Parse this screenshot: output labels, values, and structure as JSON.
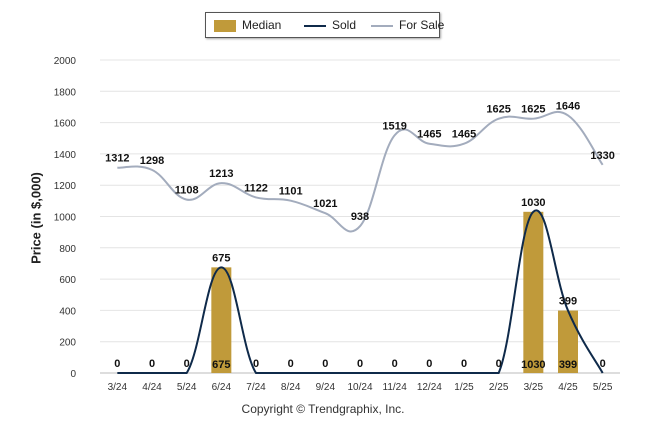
{
  "legend": {
    "median_label": "Median",
    "sold_label": "Sold",
    "forsale_label": "For Sale"
  },
  "copyright": "Copyright © Trendgraphix, Inc.",
  "colors": {
    "median": "#c09a3a",
    "sold": "#0f2a4a",
    "forsale": "#a3acbd"
  },
  "chart_data": {
    "type": "bar",
    "categories": [
      "3/24",
      "4/24",
      "5/24",
      "6/24",
      "7/24",
      "8/24",
      "9/24",
      "10/24",
      "11/24",
      "12/24",
      "1/25",
      "2/25",
      "3/25",
      "4/25",
      "5/25"
    ],
    "ylabel": "Price (in $,000)",
    "xlabel": "",
    "ylim": [
      0,
      2000
    ],
    "yticks": [
      0,
      200,
      400,
      600,
      800,
      1000,
      1200,
      1400,
      1600,
      1800,
      2000
    ],
    "grid": true,
    "legend_position": "top-center",
    "series": [
      {
        "name": "Median",
        "type": "bar",
        "values": [
          0,
          0,
          0,
          675,
          0,
          0,
          0,
          0,
          0,
          0,
          0,
          0,
          1030,
          399,
          0
        ]
      },
      {
        "name": "Sold",
        "type": "line",
        "values": [
          0,
          0,
          0,
          675,
          0,
          0,
          0,
          0,
          0,
          0,
          0,
          0,
          1030,
          399,
          0
        ]
      },
      {
        "name": "For Sale",
        "type": "line",
        "values": [
          1312,
          1298,
          1108,
          1213,
          1122,
          1101,
          1021,
          938,
          1519,
          1465,
          1465,
          1625,
          1625,
          1646,
          1330
        ]
      }
    ]
  }
}
